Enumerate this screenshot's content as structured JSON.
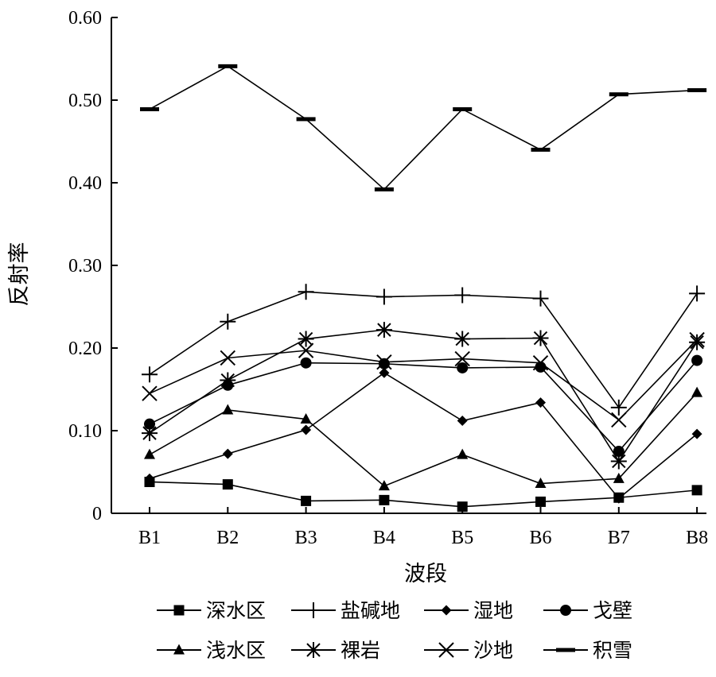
{
  "chart_data": {
    "type": "line",
    "xlabel": "波段",
    "ylabel": "反射率",
    "categories": [
      "B1",
      "B2",
      "B3",
      "B4",
      "B5",
      "B6",
      "B7",
      "B8"
    ],
    "y_ticks": [
      "0",
      "0.10",
      "0.20",
      "0.30",
      "0.40",
      "0.50",
      "0.60"
    ],
    "ylim": [
      0,
      0.6
    ],
    "grid": false,
    "legend_position": "bottom",
    "series": [
      {
        "name": "深水区",
        "marker": "square",
        "values": [
          0.038,
          0.035,
          0.015,
          0.016,
          0.008,
          0.014,
          0.019,
          0.028
        ]
      },
      {
        "name": "盐碱地",
        "marker": "plus",
        "values": [
          0.168,
          0.232,
          0.268,
          0.262,
          0.264,
          0.26,
          0.128,
          0.266
        ]
      },
      {
        "name": "湿地",
        "marker": "diamond",
        "values": [
          0.042,
          0.072,
          0.101,
          0.17,
          0.112,
          0.134,
          0.018,
          0.096
        ]
      },
      {
        "name": "戈壁",
        "marker": "circle",
        "values": [
          0.108,
          0.155,
          0.182,
          0.181,
          0.176,
          0.177,
          0.075,
          0.185
        ]
      },
      {
        "name": "浅水区",
        "marker": "triangle",
        "values": [
          0.071,
          0.125,
          0.114,
          0.033,
          0.071,
          0.036,
          0.042,
          0.146
        ]
      },
      {
        "name": "裸岩",
        "marker": "asterisk",
        "values": [
          0.097,
          0.161,
          0.211,
          0.222,
          0.211,
          0.212,
          0.063,
          0.207
        ]
      },
      {
        "name": "沙地",
        "marker": "x",
        "values": [
          0.145,
          0.188,
          0.197,
          0.183,
          0.187,
          0.182,
          0.113,
          0.21
        ]
      },
      {
        "name": "积雪",
        "marker": "dash",
        "values": [
          0.489,
          0.541,
          0.477,
          0.392,
          0.489,
          0.44,
          0.507,
          0.512
        ]
      }
    ]
  }
}
